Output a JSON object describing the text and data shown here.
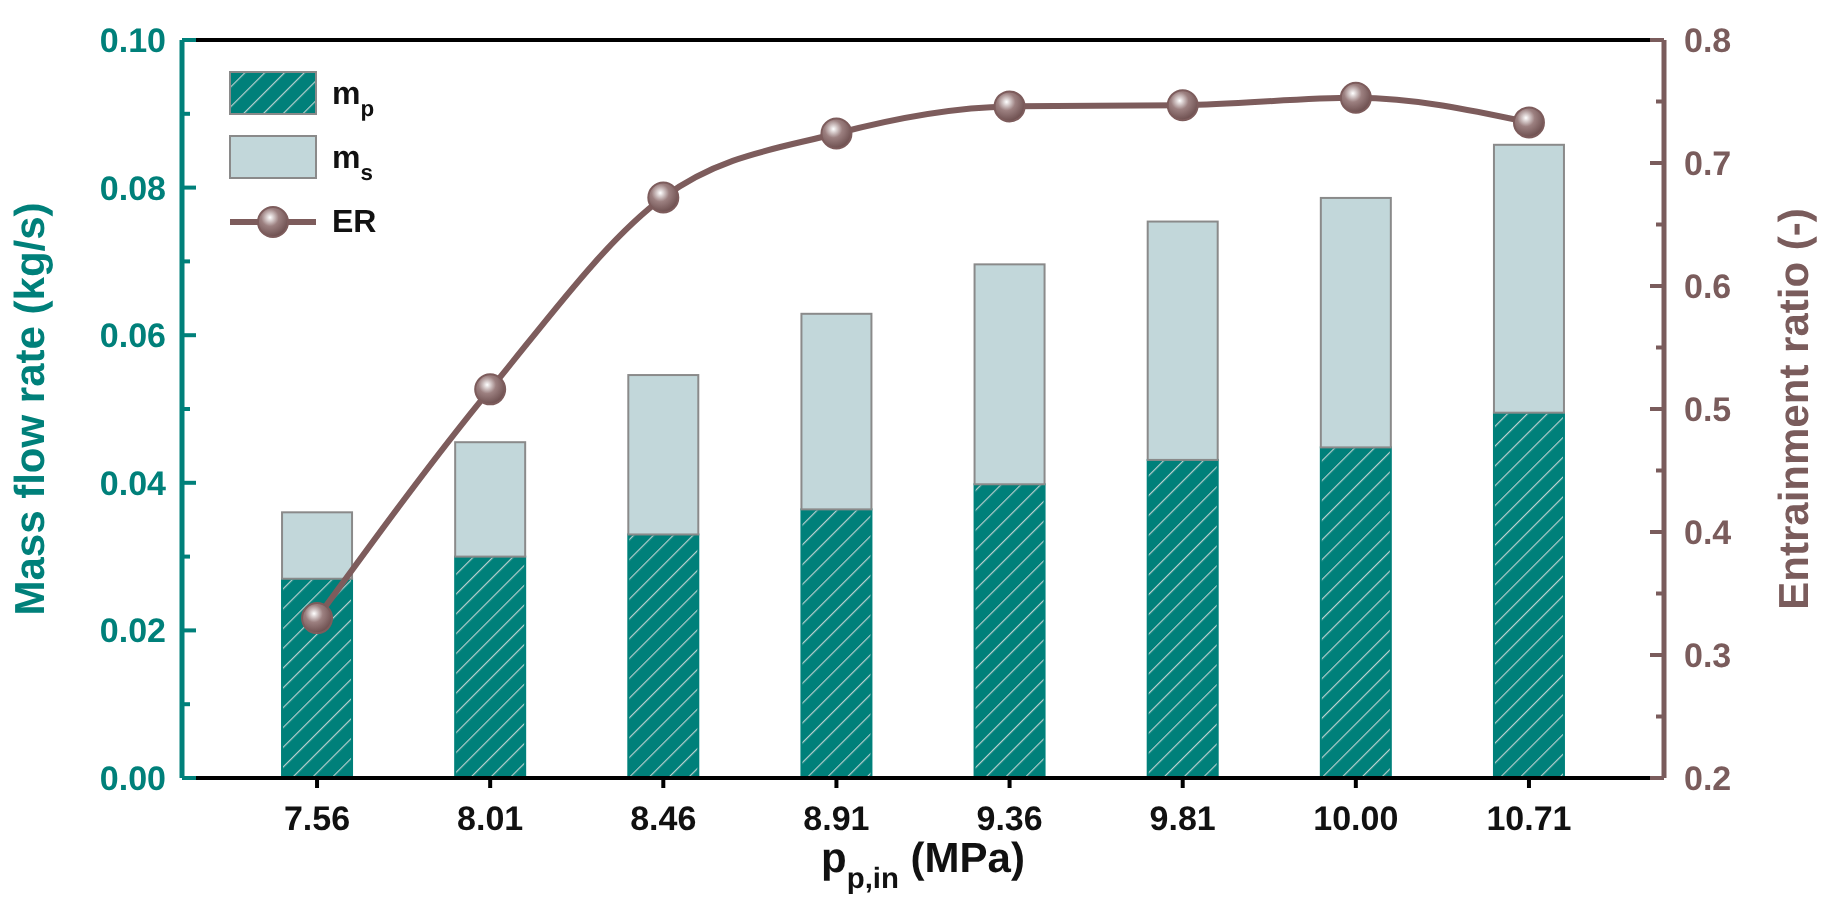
{
  "chart_data": {
    "type": "bar",
    "stacked": true,
    "xlabel": "p$_{p,in}$ (MPa)",
    "ylabel": "Mass flow rate (kg/s)",
    "y2label": "Entrainment ratio (-)",
    "categories": [
      "7.56",
      "8.01",
      "8.46",
      "8.91",
      "9.36",
      "9.81",
      "10.00",
      "10.71"
    ],
    "series": [
      {
        "name": "m$_{p}$",
        "color": "#00807a",
        "values": [
          0.027,
          0.03,
          0.033,
          0.0364,
          0.0398,
          0.0431,
          0.0448,
          0.0495
        ]
      },
      {
        "name": "m$_{s}$",
        "color": "#c2d7da",
        "values": [
          0.009,
          0.0155,
          0.0216,
          0.0265,
          0.0298,
          0.0323,
          0.0338,
          0.0363
        ]
      },
      {
        "name": "ER",
        "type": "line",
        "axis": "y2",
        "color": "#7d5c5c",
        "marker": "circle",
        "values": [
          0.33,
          0.516,
          0.672,
          0.724,
          0.746,
          0.747,
          0.753,
          0.733
        ]
      }
    ],
    "ylim": [
      0,
      0.1
    ],
    "yticks": [
      {
        "value": 0,
        "label": "0.00"
      },
      {
        "value": 0.01,
        "label": null
      },
      {
        "value": 0.02,
        "label": "0.02"
      },
      {
        "value": 0.03,
        "label": null
      },
      {
        "value": 0.04,
        "label": "0.04"
      },
      {
        "value": 0.05,
        "label": null
      },
      {
        "value": 0.06,
        "label": "0.06"
      },
      {
        "value": 0.07,
        "label": null
      },
      {
        "value": 0.08,
        "label": "0.08"
      },
      {
        "value": 0.09,
        "label": null
      },
      {
        "value": 0.1,
        "label": "0.10"
      }
    ],
    "y2lim": [
      0.2,
      0.8
    ],
    "y2ticks": [
      0.2,
      {
        "value": 0.25,
        "label": null
      },
      0.3,
      {
        "value": 0.35,
        "label": null
      },
      0.4,
      {
        "value": 0.45,
        "label": null
      },
      0.5,
      {
        "value": 0.55,
        "label": null
      },
      0.6,
      {
        "value": 0.65,
        "label": null
      },
      0.7,
      {
        "value": 0.75,
        "label": null
      },
      0.8
    ],
    "grid": false,
    "legend": "top left"
  }
}
